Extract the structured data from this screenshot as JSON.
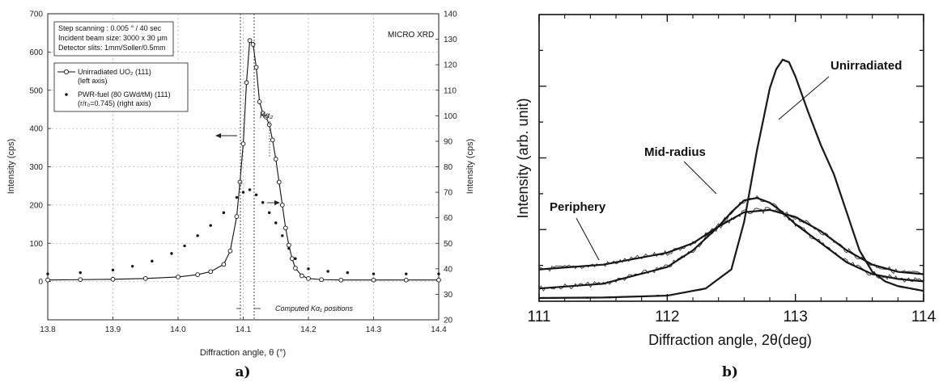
{
  "chart_data": [
    {
      "type": "scatter",
      "panel_label": "a)",
      "xlabel": "Diffraction angle,  θ  (°)",
      "ylabel": "Intensity  (cps)",
      "y2label": "Intensity  (cps)",
      "title_tag": "MICRO XRD",
      "xlim": [
        13.8,
        14.4
      ],
      "ylim": [
        -100,
        700
      ],
      "y2lim": [
        20,
        140
      ],
      "xticks": [
        "13.8",
        "13.9",
        "14.0",
        "14.1",
        "14.2",
        "14.3",
        "14.4"
      ],
      "yticks": [
        "0",
        "100",
        "200",
        "300",
        "400",
        "500",
        "600",
        "700"
      ],
      "y2ticks": [
        "20",
        "30",
        "40",
        "50",
        "60",
        "70",
        "80",
        "90",
        "100",
        "110",
        "120",
        "130",
        "140"
      ],
      "grid": true,
      "info_lines": [
        "Step scanning :  0.005 ° / 40 sec",
        "Incident beam size: 3000 x 30 μm",
        "Detector slits: 1mm/Soller/0.5mm"
      ],
      "legend": [
        "Unirradiated UO₂ (111)",
        "(left axis)",
        "PWR-fuel (80 GWd/tM)  (111)",
        "(r/r₀=0.745)  (right axis)"
      ],
      "annotations": {
        "kalpha2": "Kα₂",
        "computed": "Computed Kα₁ positions"
      },
      "series": [
        {
          "name": "Unirradiated UO₂ (111)",
          "axis": "left",
          "x": [
            13.8,
            13.85,
            13.9,
            13.95,
            14.0,
            14.03,
            14.05,
            14.07,
            14.08,
            14.09,
            14.095,
            14.1,
            14.105,
            14.11,
            14.115,
            14.12,
            14.125,
            14.13,
            14.135,
            14.14,
            14.145,
            14.15,
            14.155,
            14.16,
            14.165,
            14.17,
            14.175,
            14.18,
            14.19,
            14.2,
            14.22,
            14.25,
            14.3,
            14.35,
            14.4
          ],
          "y": [
            4,
            5,
            6,
            8,
            12,
            18,
            26,
            45,
            80,
            170,
            260,
            360,
            520,
            630,
            620,
            560,
            470,
            440,
            430,
            410,
            370,
            320,
            260,
            200,
            140,
            95,
            60,
            35,
            15,
            8,
            5,
            4,
            4,
            4,
            4
          ]
        },
        {
          "name": "PWR-fuel (80 GWd/tM) (111)",
          "axis": "right",
          "x": [
            13.8,
            13.85,
            13.9,
            13.93,
            13.96,
            13.99,
            14.01,
            14.03,
            14.05,
            14.07,
            14.09,
            14.1,
            14.11,
            14.12,
            14.13,
            14.14,
            14.15,
            14.16,
            14.17,
            14.18,
            14.2,
            14.23,
            14.26,
            14.3,
            14.35,
            14.4
          ],
          "y": [
            38,
            38.5,
            39.5,
            41,
            43,
            46,
            49,
            53,
            57,
            62,
            68,
            70,
            71,
            69,
            66,
            62,
            58,
            53,
            48,
            44,
            40,
            39,
            38.5,
            38,
            38,
            38
          ]
        }
      ]
    },
    {
      "type": "line",
      "panel_label": "b)",
      "xlabel": "Diffraction angle, 2θ(deg)",
      "ylabel": "Intensity (arb. unit)",
      "xlim": [
        111,
        114
      ],
      "xticks": [
        "111",
        "112",
        "113",
        "114"
      ],
      "ylim": [
        0,
        1
      ],
      "series": [
        {
          "name": "Unirradiated",
          "x": [
            111.0,
            111.5,
            112.0,
            112.3,
            112.5,
            112.6,
            112.7,
            112.8,
            112.85,
            112.9,
            112.95,
            113.0,
            113.1,
            113.2,
            113.3,
            113.4,
            113.5,
            113.6,
            113.7,
            113.8,
            114.0
          ],
          "y": [
            0.0,
            0.002,
            0.01,
            0.04,
            0.12,
            0.32,
            0.62,
            0.88,
            0.96,
            1.0,
            0.99,
            0.93,
            0.78,
            0.64,
            0.52,
            0.36,
            0.2,
            0.11,
            0.07,
            0.05,
            0.03
          ]
        },
        {
          "name": "Mid-radius",
          "x": [
            111.0,
            111.5,
            112.0,
            112.2,
            112.4,
            112.5,
            112.6,
            112.7,
            112.8,
            112.9,
            113.0,
            113.2,
            113.4,
            113.6,
            113.8,
            114.0
          ],
          "y": [
            0.04,
            0.06,
            0.13,
            0.2,
            0.3,
            0.36,
            0.41,
            0.42,
            0.4,
            0.36,
            0.31,
            0.23,
            0.15,
            0.1,
            0.08,
            0.07
          ]
        },
        {
          "name": "Periphery",
          "x": [
            111.0,
            111.5,
            112.0,
            112.2,
            112.4,
            112.6,
            112.8,
            113.0,
            113.2,
            113.4,
            113.6,
            113.8,
            114.0
          ],
          "y": [
            0.12,
            0.14,
            0.19,
            0.23,
            0.3,
            0.36,
            0.37,
            0.34,
            0.28,
            0.2,
            0.14,
            0.11,
            0.1
          ]
        }
      ]
    }
  ]
}
